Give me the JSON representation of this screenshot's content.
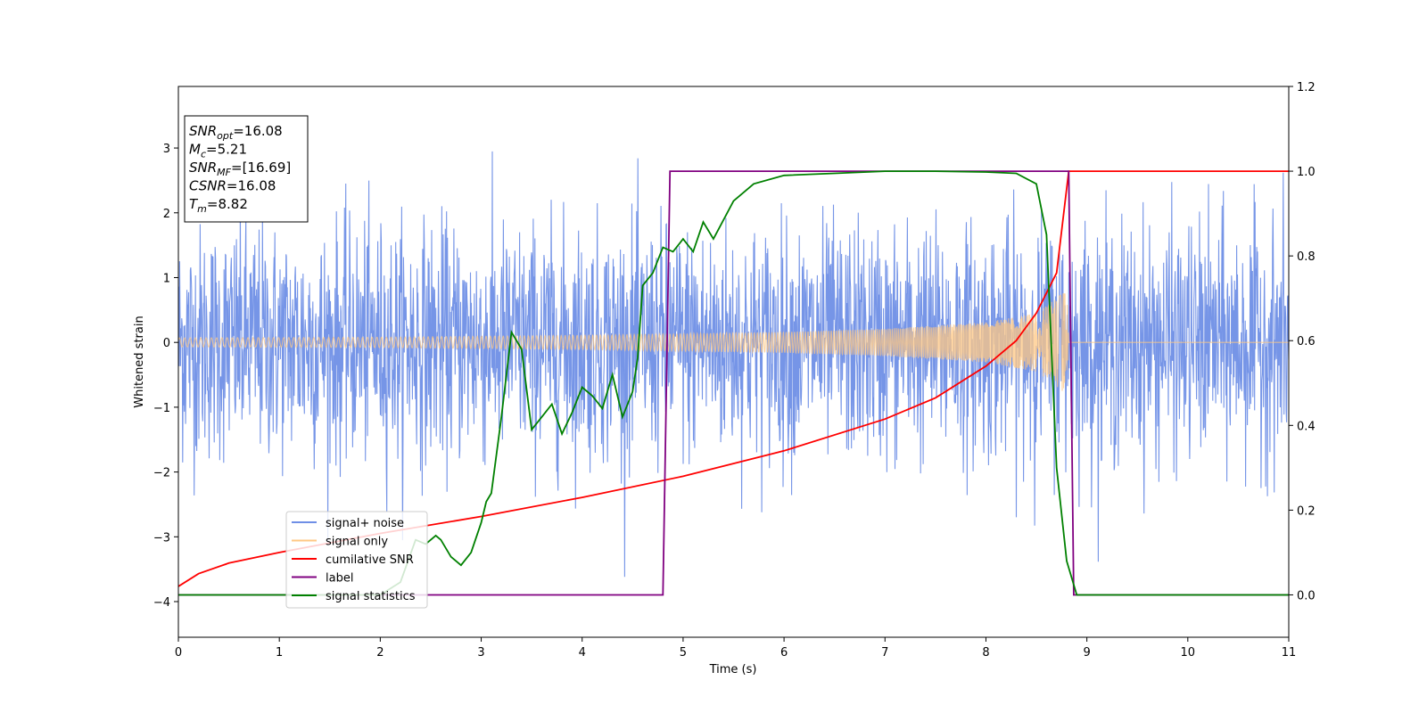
{
  "chart_data": {
    "type": "line",
    "xlabel": "Time (s)",
    "ylabel": "Whitened strain",
    "xlim": [
      0,
      11
    ],
    "ylim_left": [
      -4.55,
      3.95
    ],
    "ylim_right": [
      -0.1,
      1.2
    ],
    "x_ticks": [
      0,
      1,
      2,
      3,
      4,
      5,
      6,
      7,
      8,
      9,
      10,
      11
    ],
    "y_ticks_left": [
      -4,
      -3,
      -2,
      -1,
      0,
      1,
      2,
      3
    ],
    "y_ticks_right": [
      0.0,
      0.2,
      0.4,
      0.6,
      0.8,
      1.0,
      1.2
    ],
    "grid": false,
    "legend_placement": "lower-left",
    "annotation": [
      {
        "var": "SNR",
        "sub": "opt",
        "value": "=16.08"
      },
      {
        "var": "M",
        "sub": "c",
        "value": "=5.21"
      },
      {
        "var": "SNR",
        "sub": "MF",
        "value": "=[16.69]"
      },
      {
        "var": "CSNR",
        "sub": "",
        "value": "=16.08"
      },
      {
        "var": "T",
        "sub": "m",
        "value": "=8.82"
      }
    ],
    "series": [
      {
        "name": "signal+ noise",
        "axis": "left",
        "color": "#6f8fe6",
        "description_values": {
          "noise_sigma": 0.9,
          "x_range": [
            0,
            11
          ]
        }
      },
      {
        "name": "signal only",
        "axis": "left",
        "color": "#ffc884",
        "envelope": {
          "x": [
            0,
            2,
            4,
            6,
            7,
            8,
            8.5,
            8.8,
            8.82,
            11
          ],
          "amp": [
            0.07,
            0.08,
            0.11,
            0.16,
            0.21,
            0.31,
            0.45,
            0.8,
            0.0,
            0.0
          ]
        }
      },
      {
        "name": "cumilative SNR",
        "axis": "right",
        "color": "#ff0000",
        "x": [
          0,
          0.2,
          0.5,
          1,
          2,
          3,
          4,
          5,
          6,
          7,
          7.5,
          8,
          8.3,
          8.5,
          8.7,
          8.82,
          11
        ],
        "values": [
          0.02,
          0.05,
          0.075,
          0.1,
          0.145,
          0.185,
          0.23,
          0.28,
          0.34,
          0.415,
          0.465,
          0.54,
          0.6,
          0.665,
          0.76,
          1.0,
          1.0
        ]
      },
      {
        "name": "label",
        "axis": "right",
        "color": "#800080",
        "x": [
          0,
          4.8,
          4.87,
          8.82,
          8.87,
          11
        ],
        "values": [
          0.0,
          0.0,
          1.0,
          1.0,
          0.0,
          0.0
        ]
      },
      {
        "name": "signal statistics",
        "axis": "right",
        "color": "#008000",
        "x": [
          0,
          2.0,
          2.2,
          2.35,
          2.45,
          2.55,
          2.6,
          2.7,
          2.8,
          2.9,
          3.0,
          3.05,
          3.1,
          3.2,
          3.3,
          3.4,
          3.5,
          3.6,
          3.7,
          3.8,
          3.9,
          4.0,
          4.1,
          4.2,
          4.3,
          4.4,
          4.5,
          4.55,
          4.6,
          4.7,
          4.8,
          4.9,
          5.0,
          5.1,
          5.2,
          5.3,
          5.5,
          5.7,
          6.0,
          6.5,
          7.0,
          7.5,
          8.0,
          8.3,
          8.5,
          8.6,
          8.7,
          8.8,
          8.9,
          11
        ],
        "values": [
          0.0,
          0.0,
          0.03,
          0.13,
          0.12,
          0.14,
          0.13,
          0.09,
          0.07,
          0.1,
          0.17,
          0.22,
          0.24,
          0.42,
          0.62,
          0.58,
          0.39,
          0.42,
          0.45,
          0.38,
          0.43,
          0.49,
          0.47,
          0.44,
          0.52,
          0.42,
          0.48,
          0.56,
          0.73,
          0.76,
          0.82,
          0.81,
          0.84,
          0.81,
          0.88,
          0.84,
          0.93,
          0.97,
          0.99,
          0.995,
          1.0,
          1.0,
          0.998,
          0.995,
          0.97,
          0.85,
          0.3,
          0.08,
          0.0,
          0.0
        ]
      }
    ]
  }
}
